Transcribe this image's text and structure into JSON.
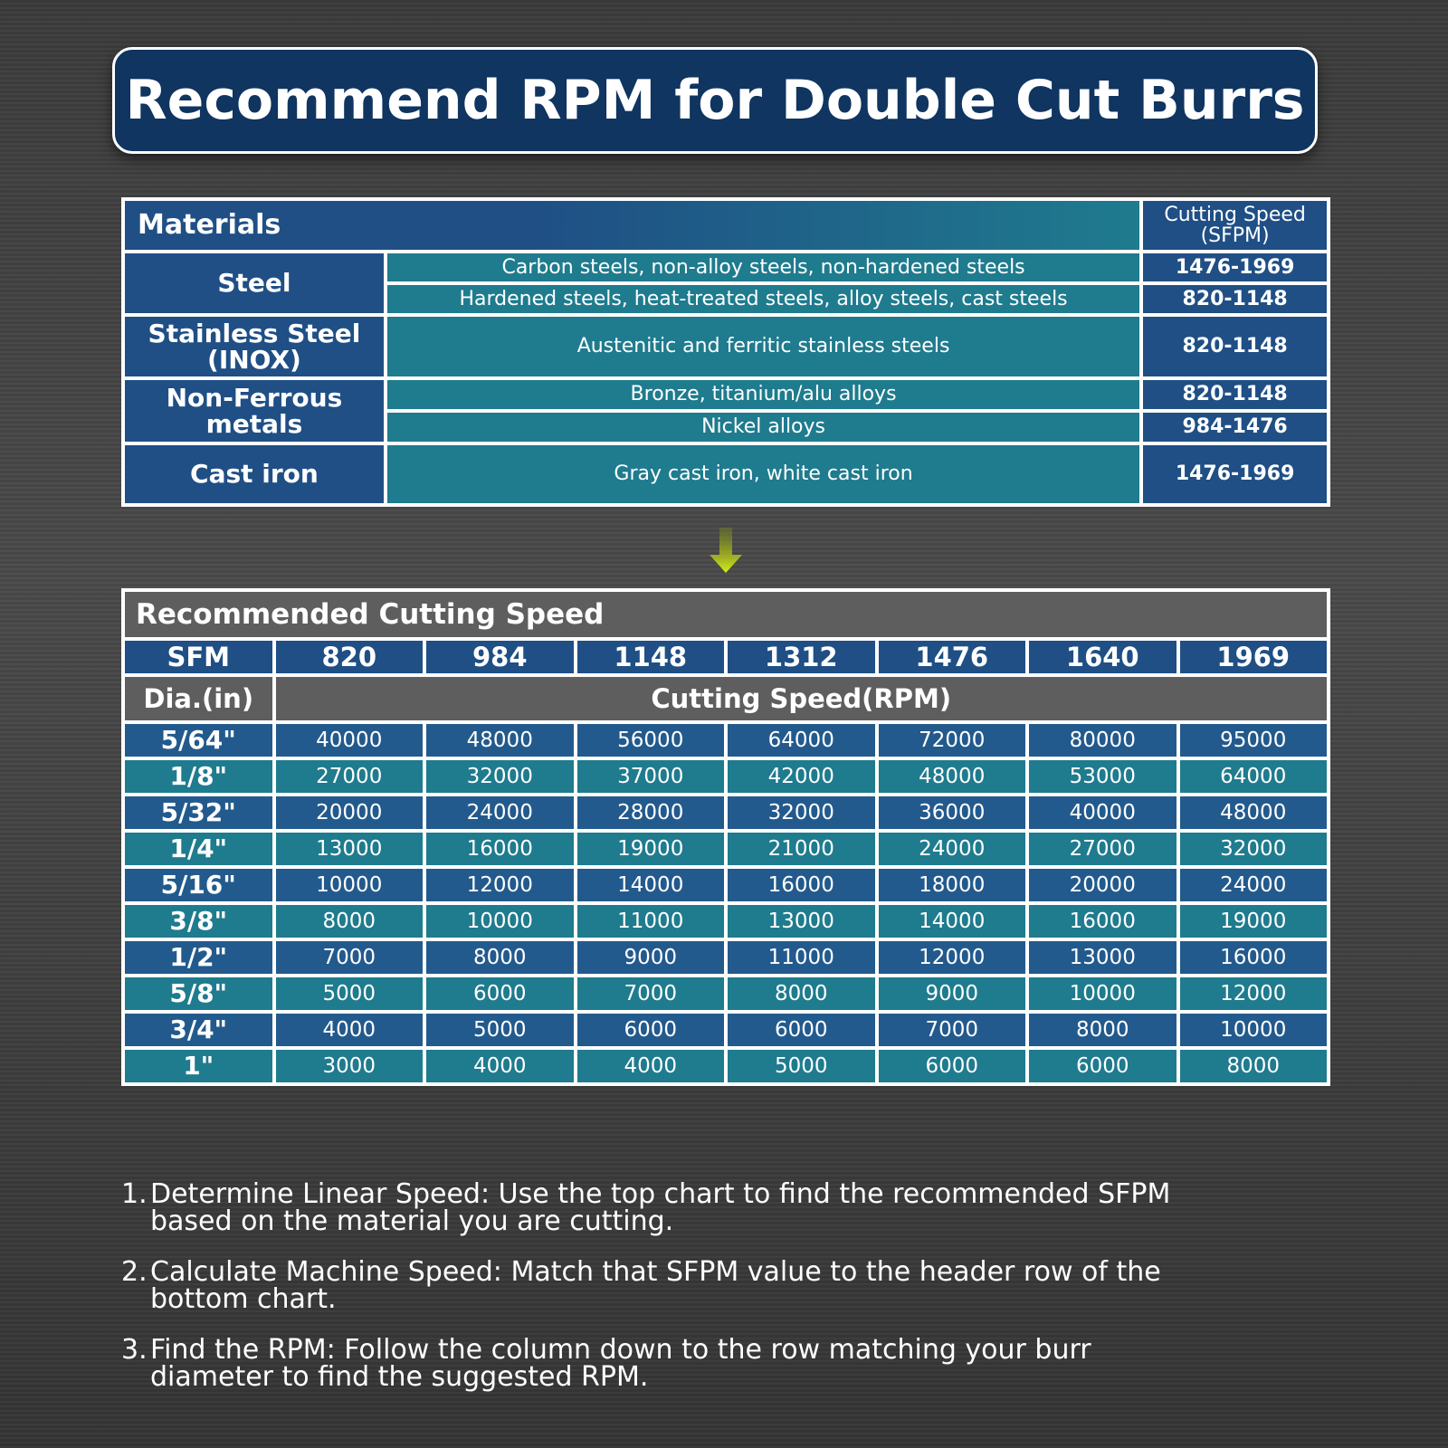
{
  "header": {
    "title": "Recommend RPM for Double Cut Burrs"
  },
  "materials_table": {
    "header": {
      "materials": "Materials",
      "speed": "Cutting Speed (SFPM)"
    },
    "groups": [
      {
        "material": "Steel",
        "rows": [
          {
            "description": "Carbon steels, non-alloy steels, non-hardened steels",
            "speed": "1476-1969"
          },
          {
            "description": "Hardened steels, heat-treated steels, alloy steels, cast steels",
            "speed": "820-1148"
          }
        ]
      },
      {
        "material": "Stainless Steel (INOX)",
        "rows": [
          {
            "description": "Austenitic and ferritic stainless steels",
            "speed": "820-1148"
          }
        ]
      },
      {
        "material": "Non-Ferrous metals",
        "rows": [
          {
            "description": "Bronze, titanium/alu alloys",
            "speed": "820-1148"
          },
          {
            "description": "Nickel alloys",
            "speed": "984-1476"
          }
        ]
      },
      {
        "material": "Cast iron",
        "rows": [
          {
            "description": "Gray cast iron, white cast iron",
            "speed": "1476-1969"
          }
        ]
      }
    ]
  },
  "rpm_table": {
    "title": "Recommended Cutting Speed",
    "sfm_label": "SFM",
    "sfm": [
      820,
      984,
      1148,
      1312,
      1476,
      1640,
      1969
    ],
    "dia_label": "Dia.(in)",
    "rpm_label": "Cutting Speed(RPM)",
    "rows": [
      {
        "dia": "5/64\"",
        "rpm": [
          40000,
          48000,
          56000,
          64000,
          72000,
          80000,
          95000
        ]
      },
      {
        "dia": "1/8\"",
        "rpm": [
          27000,
          32000,
          37000,
          42000,
          48000,
          53000,
          64000
        ]
      },
      {
        "dia": "5/32\"",
        "rpm": [
          20000,
          24000,
          28000,
          32000,
          36000,
          40000,
          48000
        ]
      },
      {
        "dia": "1/4\"",
        "rpm": [
          13000,
          16000,
          19000,
          21000,
          24000,
          27000,
          32000
        ]
      },
      {
        "dia": "5/16\"",
        "rpm": [
          10000,
          12000,
          14000,
          16000,
          18000,
          20000,
          24000
        ]
      },
      {
        "dia": "3/8\"",
        "rpm": [
          8000,
          10000,
          11000,
          13000,
          14000,
          16000,
          19000
        ]
      },
      {
        "dia": "1/2\"",
        "rpm": [
          7000,
          8000,
          9000,
          11000,
          12000,
          13000,
          16000
        ]
      },
      {
        "dia": "5/8\"",
        "rpm": [
          5000,
          6000,
          7000,
          8000,
          9000,
          10000,
          12000
        ]
      },
      {
        "dia": "3/4\"",
        "rpm": [
          4000,
          5000,
          6000,
          6000,
          7000,
          8000,
          10000
        ]
      },
      {
        "dia": "1\"",
        "rpm": [
          3000,
          4000,
          4000,
          5000,
          6000,
          6000,
          8000
        ]
      }
    ]
  },
  "steps": [
    {
      "number": "1.",
      "text": "Determine Linear Speed: Use the top chart to find the recommended SFPM based on the material you are cutting."
    },
    {
      "number": "2.",
      "text": "Calculate Machine Speed: Match that SFPM value to the header row of the bottom chart."
    },
    {
      "number": "3.",
      "text": "Find the RPM: Follow the column down to the row matching your burr diameter to find the suggested RPM."
    }
  ]
}
